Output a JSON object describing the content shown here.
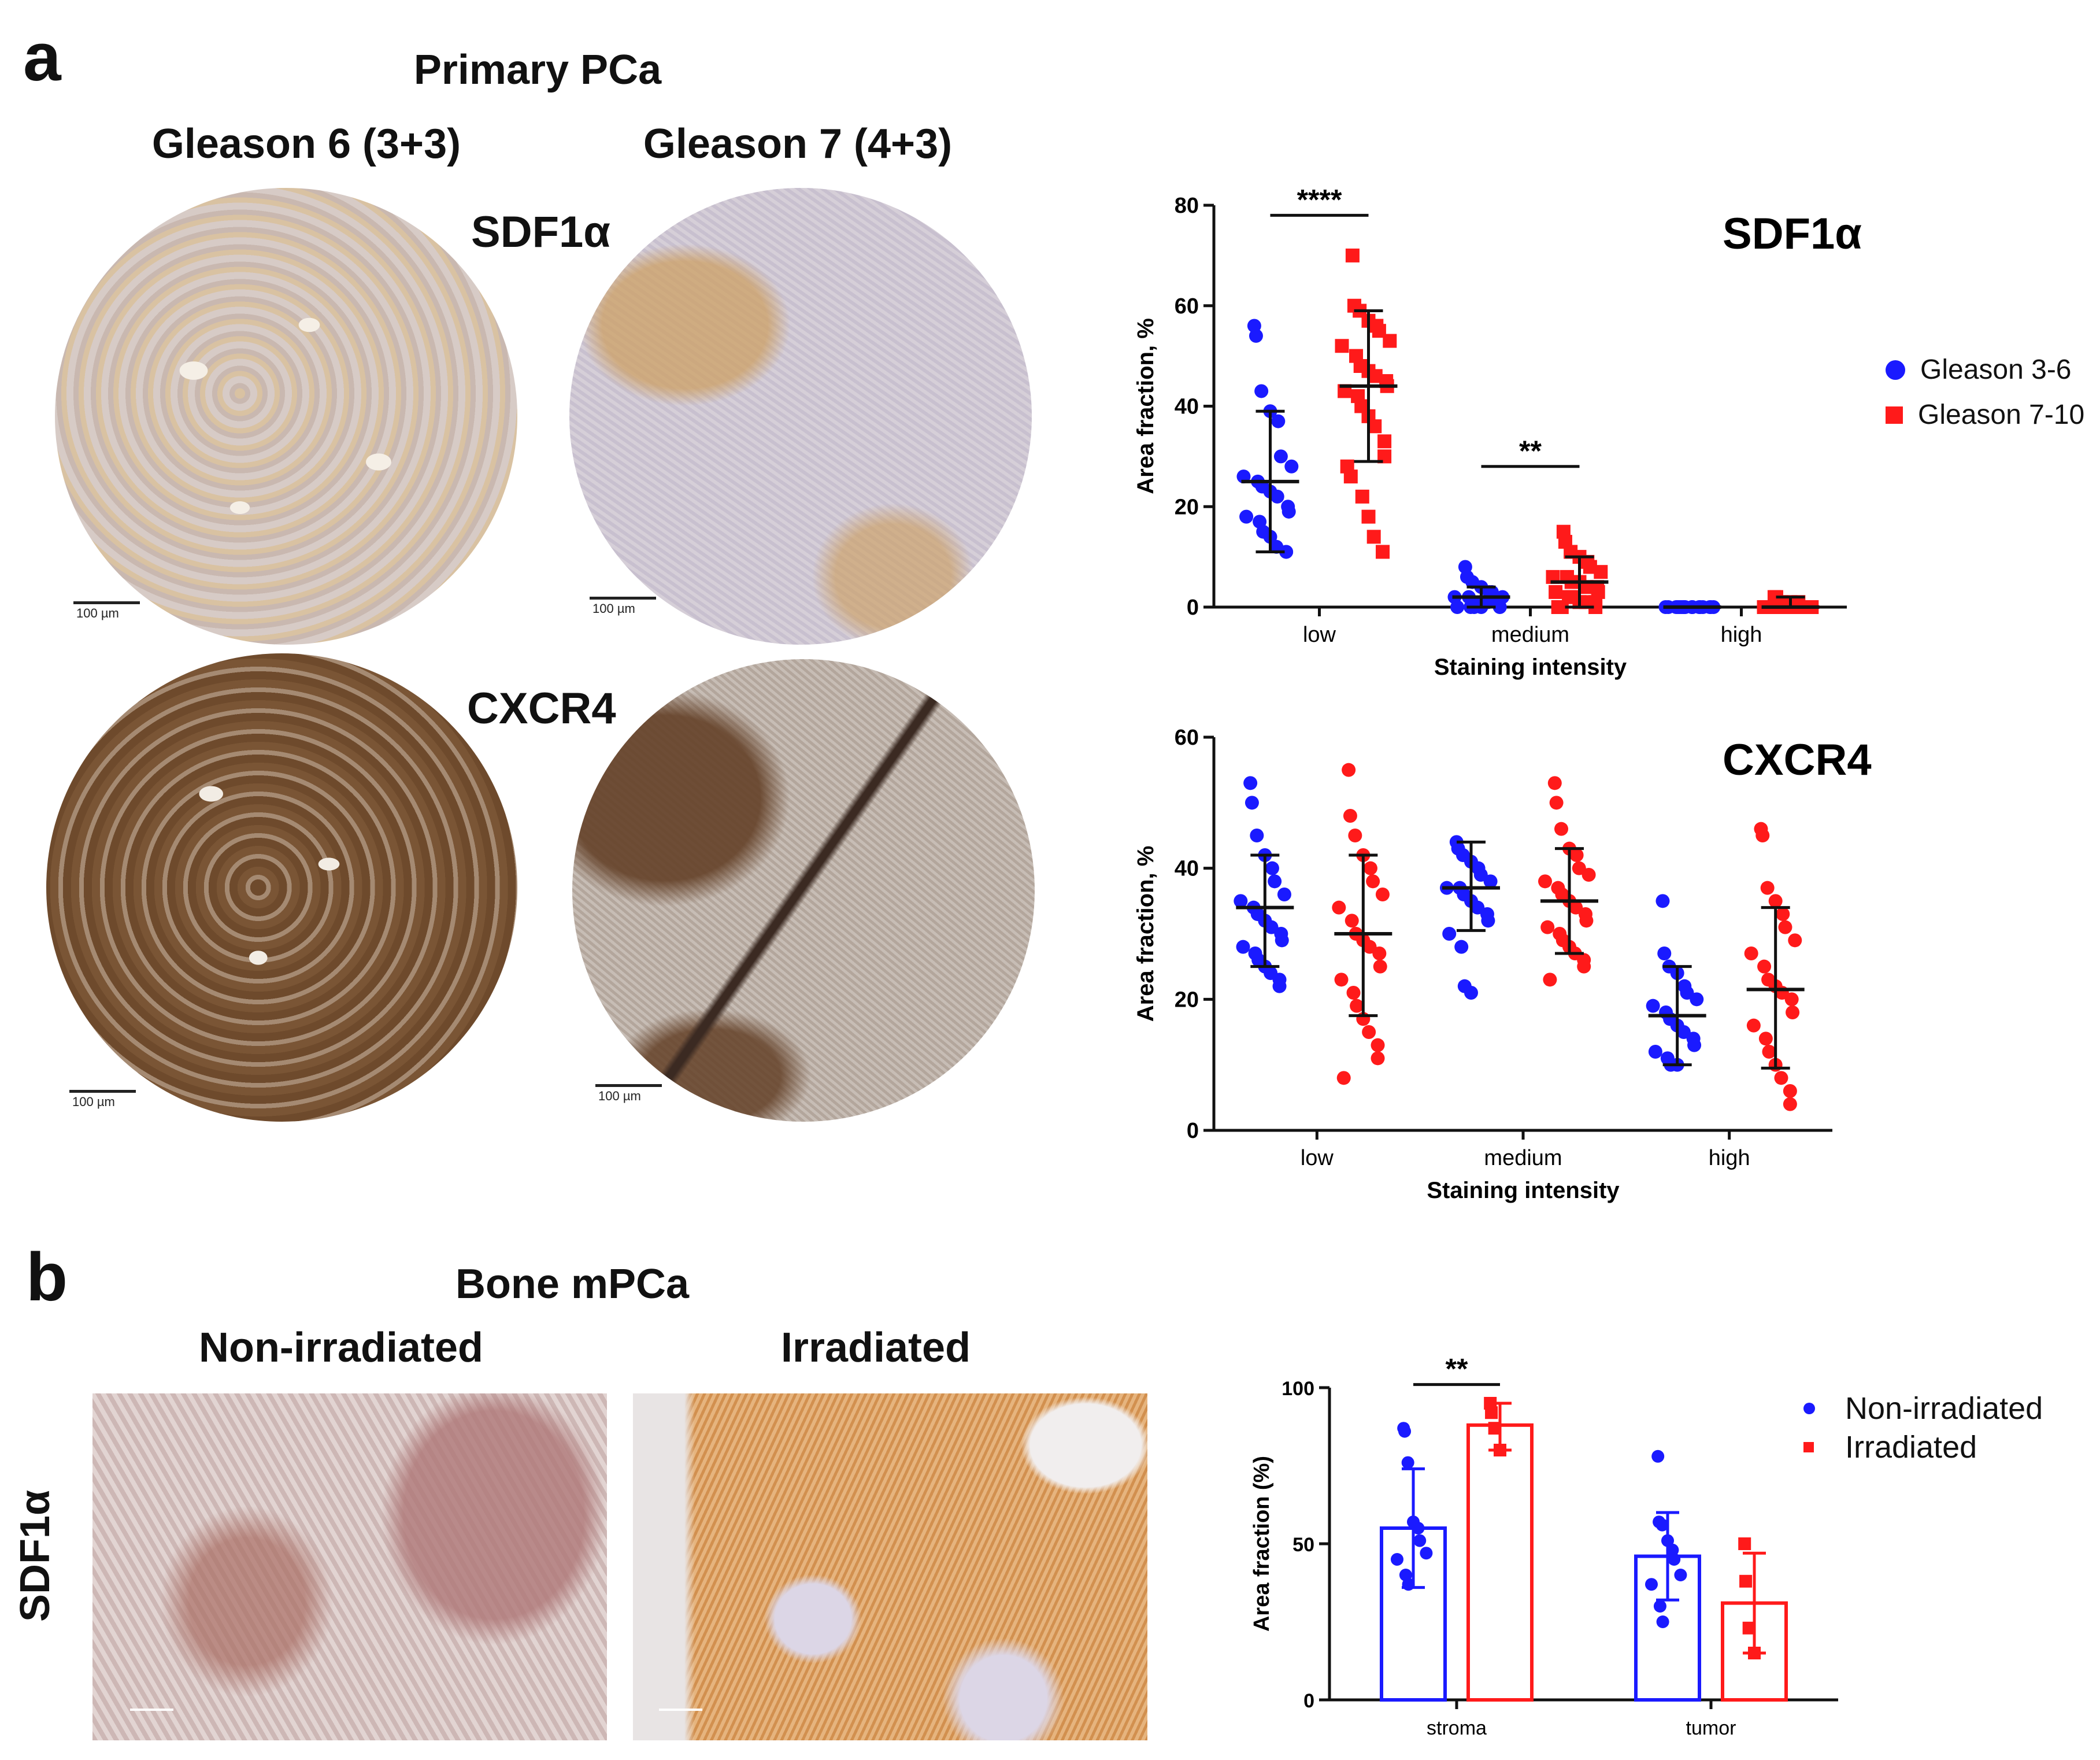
{
  "panel_a": {
    "letter": "a",
    "title": "Primary PCa",
    "col_labels": [
      "Gleason 6 (3+3)",
      "Gleason 7 (4+3)"
    ],
    "row_labels": [
      "SDF1α",
      "CXCR4"
    ],
    "scale_bar": "100 µm",
    "legend": [
      {
        "label": "Gleason 3-6",
        "color": "#1a1aff",
        "shape": "circle"
      },
      {
        "label": "Gleason 7-10",
        "color": "#ff1a1a",
        "shape": "square"
      }
    ]
  },
  "panel_b": {
    "letter": "b",
    "title": "Bone mPCa",
    "col_labels": [
      "Non-irradiated",
      "Irradiated"
    ],
    "row_label": "SDF1α",
    "legend": [
      {
        "label": "Non-irradiated",
        "color": "#1a1aff",
        "shape": "circle"
      },
      {
        "label": "Irradiated",
        "color": "#ff1a1a",
        "shape": "square"
      }
    ]
  },
  "colors": {
    "blue": "#1a1aff",
    "red": "#ff1a1a",
    "axis": "#111111"
  },
  "chart_data": [
    {
      "id": "sdf1a",
      "type": "scatter",
      "title": "SDF1α",
      "xlabel": "Staining intensity",
      "ylabel": "Area fraction, %",
      "ylim": [
        0,
        80
      ],
      "yticks": [
        0,
        20,
        40,
        60,
        80
      ],
      "categories": [
        "low",
        "medium",
        "high"
      ],
      "series": [
        {
          "name": "Gleason 3-6",
          "color": "#1a1aff",
          "marker": "circle",
          "mean": [
            25,
            2,
            0
          ],
          "sd_low": [
            11,
            0,
            0
          ],
          "sd_high": [
            39,
            4,
            0
          ],
          "points": [
            [
              56,
              54,
              43,
              39,
              37,
              30,
              28,
              26,
              25,
              24,
              23,
              22,
              20,
              19,
              18,
              17,
              15,
              14,
              12,
              11,
              11
            ],
            [
              8,
              6,
              5,
              4,
              3,
              3,
              2,
              2,
              2,
              1,
              1,
              1,
              1,
              0,
              0,
              0,
              0,
              0
            ],
            [
              0,
              0,
              0,
              0,
              0,
              0,
              0,
              0,
              0,
              0,
              0,
              0,
              0,
              0,
              0,
              0,
              0,
              0
            ]
          ]
        },
        {
          "name": "Gleason 7-10",
          "color": "#ff1a1a",
          "marker": "square",
          "mean": [
            44,
            5,
            0
          ],
          "sd_low": [
            29,
            0,
            0
          ],
          "sd_high": [
            59,
            10,
            2
          ],
          "points": [
            [
              70,
              60,
              59,
              57,
              56,
              55,
              53,
              52,
              50,
              48,
              47,
              46,
              45,
              44,
              43,
              42,
              40,
              38,
              36,
              33,
              30,
              28,
              26,
              22,
              18,
              14,
              11
            ],
            [
              15,
              13,
              11,
              10,
              9,
              8,
              7,
              6,
              6,
              5,
              5,
              4,
              4,
              3,
              3,
              2,
              2,
              1,
              1,
              1,
              0,
              0,
              0
            ],
            [
              2,
              2,
              1,
              1,
              1,
              0,
              0,
              0,
              0,
              0,
              0,
              0,
              0,
              0,
              0,
              0
            ]
          ]
        }
      ],
      "annotations": [
        {
          "text": "****",
          "category": 0,
          "y": 78
        },
        {
          "text": "**",
          "category": 1,
          "y": 28
        }
      ]
    },
    {
      "id": "cxcr4",
      "type": "scatter",
      "title": "CXCR4",
      "xlabel": "Staining intensity",
      "ylabel": "Area fraction, %",
      "ylim": [
        0,
        60
      ],
      "yticks": [
        0,
        20,
        40,
        60
      ],
      "categories": [
        "low",
        "medium",
        "high"
      ],
      "series": [
        {
          "name": "Gleason 3-6",
          "color": "#1a1aff",
          "marker": "circle",
          "mean": [
            34,
            37,
            17.5
          ],
          "sd_low": [
            25,
            30.5,
            10
          ],
          "sd_high": [
            42,
            44,
            25
          ],
          "points": [
            [
              53,
              50,
              45,
              42,
              40,
              38,
              36,
              35,
              34,
              33,
              32,
              31,
              30,
              29,
              28,
              27,
              26,
              25,
              24,
              23,
              22
            ],
            [
              44,
              43,
              42,
              41,
              40,
              39,
              38,
              37,
              37,
              36,
              35,
              34,
              33,
              32,
              30,
              28,
              22,
              21
            ],
            [
              35,
              27,
              25,
              24,
              22,
              21,
              20,
              19,
              18,
              17,
              16,
              15,
              14,
              13,
              12,
              11,
              10,
              10
            ]
          ]
        },
        {
          "name": "Gleason 7-10",
          "color": "#ff1a1a",
          "marker": "circle",
          "mean": [
            30,
            35,
            21.5
          ],
          "sd_low": [
            17.5,
            27,
            9.5
          ],
          "sd_high": [
            42,
            43,
            34
          ],
          "points": [
            [
              55,
              48,
              45,
              42,
              40,
              38,
              36,
              34,
              32,
              30,
              29,
              28,
              27,
              25,
              23,
              21,
              19,
              17,
              15,
              13,
              11,
              8
            ],
            [
              53,
              50,
              46,
              43,
              42,
              40,
              39,
              38,
              37,
              36,
              35,
              34,
              33,
              32,
              31,
              30,
              29,
              28,
              27,
              26,
              25,
              23
            ],
            [
              46,
              45,
              37,
              35,
              33,
              31,
              29,
              27,
              25,
              23,
              22,
              21,
              20,
              18,
              16,
              14,
              12,
              10,
              8,
              6,
              4
            ]
          ]
        }
      ],
      "annotations": []
    },
    {
      "id": "bone",
      "type": "bar",
      "title": "",
      "xlabel": "",
      "ylabel": "Area fraction (%)",
      "ylim": [
        0,
        100
      ],
      "yticks": [
        0,
        50,
        100
      ],
      "categories": [
        "stroma",
        "tumor"
      ],
      "series": [
        {
          "name": "Non-irradiated",
          "color": "#1a1aff",
          "marker": "circle",
          "mean": [
            55,
            46
          ],
          "sd_low": [
            36,
            32
          ],
          "sd_high": [
            74,
            60
          ],
          "points": [
            [
              87,
              86,
              76,
              57,
              55,
              51,
              47,
              45,
              40,
              37
            ],
            [
              78,
              57,
              56,
              51,
              48,
              45,
              40,
              37,
              30,
              25
            ]
          ]
        },
        {
          "name": "Irradiated",
          "color": "#ff1a1a",
          "marker": "square",
          "mean": [
            88,
            31
          ],
          "sd_low": [
            80,
            15
          ],
          "sd_high": [
            95,
            47
          ],
          "points": [
            [
              95,
              92,
              87,
              80
            ],
            [
              50,
              38,
              23,
              15
            ]
          ]
        }
      ],
      "annotations": [
        {
          "text": "**",
          "category": 0,
          "y": 101
        }
      ]
    }
  ]
}
